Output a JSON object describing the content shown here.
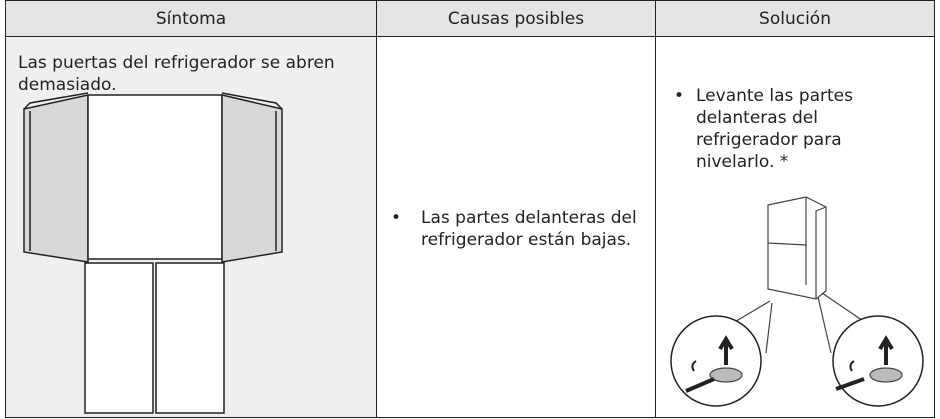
{
  "table": {
    "columns": [
      "Síntoma",
      "Causas posibles",
      "Solución"
    ],
    "rows": [
      [
        "Las puertas del refrigerador se abren demasiado.",
        "Las partes delanteras del refrigerador están bajas.",
        "Levante las partes delanteras del refrigerador para nivelarlo. *"
      ]
    ]
  }
}
